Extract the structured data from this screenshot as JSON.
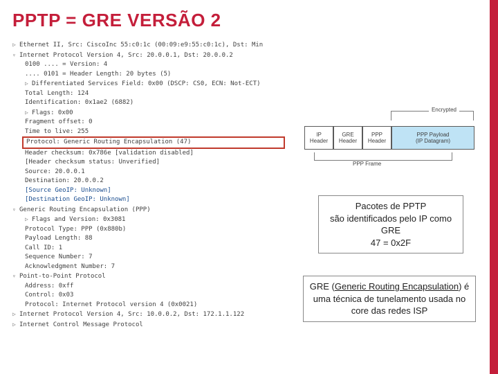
{
  "title": "PPTP = GRE VERSÃO 2",
  "packet_lines": [
    {
      "cls": "",
      "chev": "▷",
      "text": "Ethernet II, Src: CiscoInc 55:c0:1c (00:09:e9:55:c0:1c), Dst: Min"
    },
    {
      "cls": "",
      "chev": "▿",
      "text": "Internet Protocol Version 4, Src: 20.0.0.1, Dst: 20.0.0.2"
    },
    {
      "cls": "indent-1",
      "chev": "",
      "text": "0100 .... = Version: 4"
    },
    {
      "cls": "indent-1",
      "chev": "",
      "text": ".... 0101 = Header Length: 20 bytes (5)"
    },
    {
      "cls": "indent-1",
      "chev": "▷",
      "text": "Differentiated Services Field: 0x00 (DSCP: CS0, ECN: Not-ECT)"
    },
    {
      "cls": "indent-1",
      "chev": "",
      "text": "Total Length: 124"
    },
    {
      "cls": "indent-1",
      "chev": "",
      "text": "Identification: 0x1ae2 (6882)"
    },
    {
      "cls": "indent-1",
      "chev": "▷",
      "text": "Flags: 0x00"
    },
    {
      "cls": "indent-1",
      "chev": "",
      "text": "Fragment offset: 0"
    },
    {
      "cls": "indent-1",
      "chev": "",
      "text": "Time to live: 255"
    },
    {
      "cls": "highlight-row",
      "chev": "",
      "text": "Protocol: Generic Routing Encapsulation (47)"
    },
    {
      "cls": "indent-1",
      "chev": "",
      "text": "Header checksum: 0x786e [validation disabled]"
    },
    {
      "cls": "indent-1",
      "chev": "",
      "text": "[Header checksum status: Unverified]"
    },
    {
      "cls": "indent-1",
      "chev": "",
      "text": "Source: 20.0.0.1"
    },
    {
      "cls": "indent-1",
      "chev": "",
      "text": "Destination: 20.0.0.2"
    },
    {
      "cls": "indent-1 link-blue",
      "chev": "",
      "text": "[Source GeoIP: Unknown]"
    },
    {
      "cls": "indent-1 link-blue",
      "chev": "",
      "text": "[Destination GeoIP: Unknown]"
    },
    {
      "cls": "",
      "chev": "▿",
      "text": "Generic Routing Encapsulation (PPP)"
    },
    {
      "cls": "indent-1",
      "chev": "▷",
      "text": "Flags and Version: 0x3081"
    },
    {
      "cls": "indent-1",
      "chev": "",
      "text": "Protocol Type: PPP (0x880b)"
    },
    {
      "cls": "indent-1",
      "chev": "",
      "text": "Payload Length: 88"
    },
    {
      "cls": "indent-1",
      "chev": "",
      "text": "Call ID: 1"
    },
    {
      "cls": "indent-1",
      "chev": "",
      "text": "Sequence Number: 7"
    },
    {
      "cls": "indent-1",
      "chev": "",
      "text": "Acknowledgment Number: 7"
    },
    {
      "cls": "",
      "chev": "▿",
      "text": "Point-to-Point Protocol"
    },
    {
      "cls": "indent-1",
      "chev": "",
      "text": "Address: 0xff"
    },
    {
      "cls": "indent-1",
      "chev": "",
      "text": "Control: 0x03"
    },
    {
      "cls": "indent-1",
      "chev": "",
      "text": "Protocol: Internet Protocol version 4 (0x0021)"
    },
    {
      "cls": "",
      "chev": "▷",
      "text": "Internet Protocol Version 4, Src: 10.0.0.2, Dst: 172.1.1.122"
    },
    {
      "cls": "",
      "chev": "▷",
      "text": "Internet Control Message Protocol"
    }
  ],
  "diagram": {
    "encrypted_label": "Encrypted",
    "boxes": {
      "ip": "IP\nHeader",
      "gre": "GRE\nHeader",
      "ppp": "PPP\nHeader",
      "payload": "PPP Payload\n(IP Datagram)"
    },
    "ppp_frame_label": "PPP Frame"
  },
  "textbox1": {
    "l1": "Pacotes de PPTP",
    "l2": "são identificados pelo IP como GRE",
    "l3": "47 = 0x2F"
  },
  "textbox2": {
    "l1_prefix": "GRE (",
    "l1_link": "Generic Routing Encapsulation",
    "l1_suffix": ") é uma técnica de tunelamento usada no core das redes ISP"
  },
  "colors": {
    "accent": "#c41e3a",
    "payload_bg": "#bfe3f5"
  }
}
